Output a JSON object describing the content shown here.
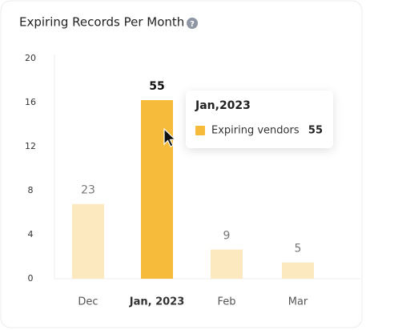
{
  "chart_data": {
    "type": "bar",
    "title": "Expiring Records Per Month",
    "categories": [
      "Dec",
      "Jan, 2023",
      "Feb",
      "Mar"
    ],
    "values": [
      23,
      55,
      9,
      5
    ],
    "color": "#fce9c0",
    "highlight_color": "#f6bb3a",
    "highlight": "Jan, 2023",
    "yticks": [
      0,
      4,
      8,
      12,
      16,
      20
    ],
    "tooltip": {
      "title": "Jan,2023",
      "series_name": "Expiring vendors",
      "value": 55
    }
  }
}
